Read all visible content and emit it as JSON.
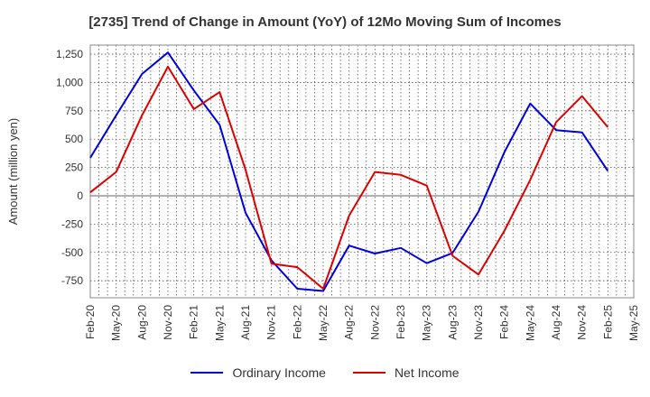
{
  "title": "[2735]  Trend of Change in Amount (YoY) of 12Mo Moving Sum of Incomes",
  "legend": {
    "ordinary": "Ordinary Income",
    "net": "Net Income"
  },
  "chart_data": {
    "type": "line",
    "title": "[2735]  Trend of Change in Amount (YoY) of 12Mo Moving Sum of Incomes",
    "ylabel": "Amount (million yen)",
    "xlabel": "",
    "x": [
      "Feb-20",
      "May-20",
      "Aug-20",
      "Nov-20",
      "Feb-21",
      "May-21",
      "Aug-21",
      "Nov-21",
      "Feb-22",
      "May-22",
      "Aug-22",
      "Nov-22",
      "Feb-23",
      "May-23",
      "Aug-23",
      "Nov-23",
      "Feb-24",
      "May-24",
      "Aug-24",
      "Nov-24",
      "Feb-25",
      "May-25"
    ],
    "ylim": [
      -900,
      1330
    ],
    "yticks": [
      -750,
      -500,
      -250,
      0,
      250,
      500,
      750,
      1000,
      1250
    ],
    "ytick_labels": [
      "-750",
      "-500",
      "-250",
      "0",
      "250",
      "500",
      "750",
      "1,000",
      "1,250"
    ],
    "grid": true,
    "legend_position": "bottom",
    "series": [
      {
        "name": "Ordinary Income",
        "color": "#0000dd",
        "values": [
          335,
          710,
          1075,
          1265,
          930,
          625,
          -150,
          -570,
          -820,
          -840,
          -440,
          -510,
          -460,
          -595,
          -505,
          -140,
          385,
          815,
          580,
          560,
          220,
          null
        ]
      },
      {
        "name": "Net Income",
        "color": "#dd0000",
        "values": [
          30,
          210,
          710,
          1140,
          765,
          915,
          230,
          -600,
          -630,
          -820,
          -175,
          210,
          185,
          90,
          -530,
          -695,
          -310,
          140,
          650,
          880,
          605,
          null
        ]
      }
    ]
  }
}
